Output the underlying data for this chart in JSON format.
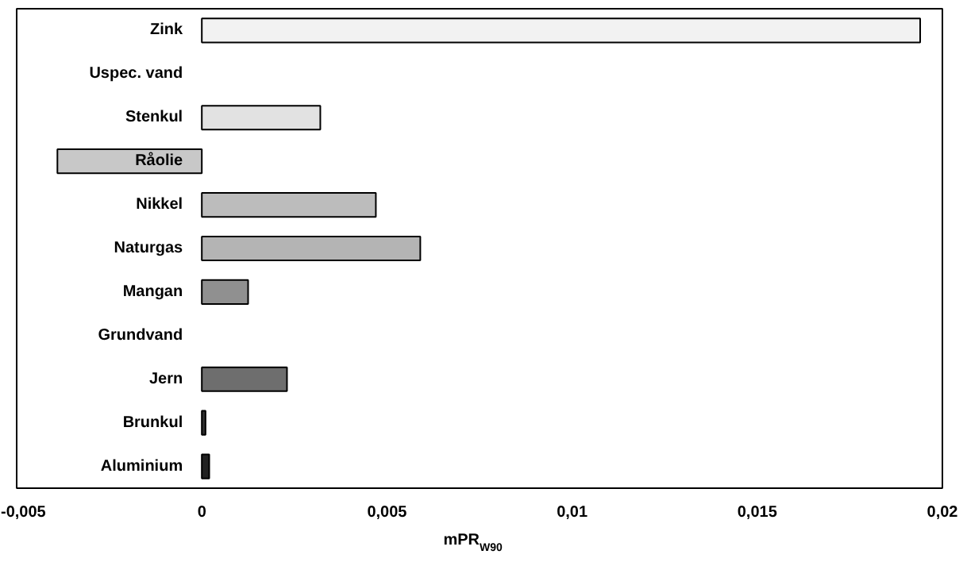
{
  "chart_data": {
    "type": "bar",
    "orientation": "horizontal",
    "xlabel": "mPR$_{W90}$",
    "categories": [
      "Zink",
      "Uspec. vand",
      "Stenkul",
      "Råolie",
      "Nikkel",
      "Naturgas",
      "Mangan",
      "Grundvand",
      "Jern",
      "Brunkul",
      "Aluminium"
    ],
    "values": [
      0.0194,
      0,
      0.0032,
      -0.0039,
      0.0047,
      0.0059,
      0.00125,
      0,
      0.0023,
      0.0001,
      0.0002
    ],
    "colors": [
      "#f2f2f2",
      "#f2f2f2",
      "#e2e2e2",
      "#c8c8c8",
      "#bcbcbc",
      "#b4b4b4",
      "#909090",
      "#888888",
      "#6e6e6e",
      "#303030",
      "#222222"
    ],
    "xlim": [
      -0.005,
      0.02
    ],
    "xticks": [
      {
        "value": -0.005,
        "label": "-0,005"
      },
      0,
      {
        "value": 0.005,
        "label": "0,005"
      },
      {
        "value": 0.01,
        "label": "0,01"
      },
      {
        "value": 0.015,
        "label": "0,015"
      },
      {
        "value": 0.02,
        "label": "0,02"
      }
    ],
    "grid": false,
    "legend": false
  }
}
